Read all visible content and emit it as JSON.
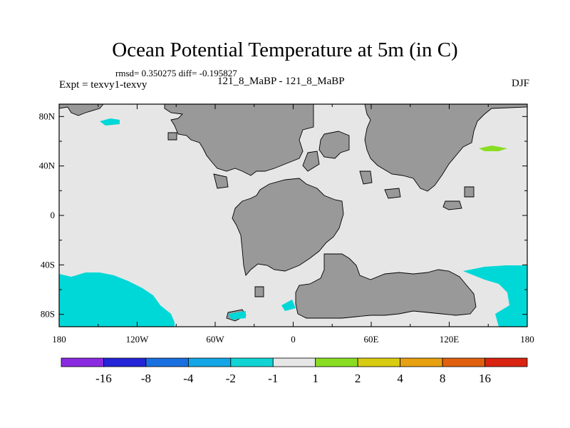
{
  "title": "Ocean Potential Temperature at 5m (in C)",
  "stats_text": "rmsd= 0.350275 diff= -0.195827",
  "left_label": "Expt = texvy1-texvy",
  "center_label": "121_8_MaBP - 121_8_MaBP",
  "right_label": "DJF",
  "colors": {
    "ocean": "#e6e6e6",
    "land": "#999999",
    "cool_anomaly": "#00d8d8",
    "warm_anomaly": "#88dd22"
  },
  "map": {
    "projection": "cylindrical-equidistant",
    "lon_range": [
      -180,
      180
    ],
    "lat_range": [
      -90,
      90
    ],
    "x_ticks": [
      {
        "lon": -180,
        "label": "180"
      },
      {
        "lon": -120,
        "label": "120W"
      },
      {
        "lon": -60,
        "label": "60W"
      },
      {
        "lon": 0,
        "label": "0"
      },
      {
        "lon": 60,
        "label": "60E"
      },
      {
        "lon": 120,
        "label": "120E"
      },
      {
        "lon": 180,
        "label": "180"
      }
    ],
    "y_ticks": [
      {
        "lat": 80,
        "label": "80N"
      },
      {
        "lat": 40,
        "label": "40N"
      },
      {
        "lat": 0,
        "label": "0"
      },
      {
        "lat": -40,
        "label": "40S"
      },
      {
        "lat": -80,
        "label": "80S"
      }
    ]
  },
  "colorbar": {
    "colors": [
      "#8a2be2",
      "#2424d8",
      "#1a70e0",
      "#14a6e6",
      "#10d4d4",
      "#e6e6e6",
      "#88dd22",
      "#d8cc10",
      "#e6a010",
      "#e06010",
      "#d82410"
    ],
    "labels": [
      "-16",
      "-8",
      "-4",
      "-2",
      "-1",
      "1",
      "2",
      "4",
      "8",
      "16"
    ]
  }
}
